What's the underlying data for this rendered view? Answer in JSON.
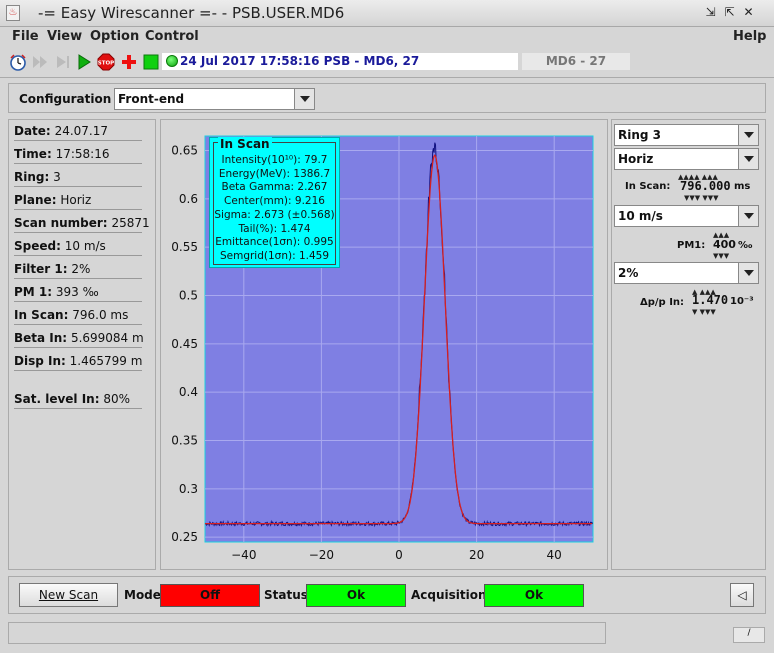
{
  "window": {
    "title": "-= Easy Wirescanner =- - PSB.USER.MD6"
  },
  "menubar": {
    "items": [
      "File",
      "View",
      "Option",
      "Control"
    ],
    "help": "Help"
  },
  "toolbar": {
    "info_text": "24 Jul 2017   17:58:16   PSB - MD6, 27",
    "md_field": "MD6  -  27",
    "icons": [
      "clock-icon",
      "step-forward-icon",
      "play-disabled-icon",
      "play-icon",
      "stop-icon",
      "red-cross-icon",
      "green-square-icon",
      "status-led-icon"
    ]
  },
  "configuration": {
    "label": "Configuration",
    "value": "Front-end"
  },
  "info": [
    {
      "label": "Date:",
      "value": "24.07.17"
    },
    {
      "label": "Time:",
      "value": "17:58:16"
    },
    {
      "label": "Ring:",
      "value": "3"
    },
    {
      "label": "Plane:",
      "value": "Horiz"
    },
    {
      "label": "Scan number:",
      "value": "25871"
    },
    {
      "label": "Speed:",
      "value": "10 m/s"
    },
    {
      "label": "Filter 1:",
      "value": "2%"
    },
    {
      "label": "PM 1:",
      "value": "393 ‰"
    },
    {
      "label": "In Scan:",
      "value": "796.0 ms"
    },
    {
      "label": "Beta In:",
      "value": "5.699084 m"
    },
    {
      "label": "Disp In:",
      "value": "1.465799 m"
    },
    {
      "label": "Sat. level In:",
      "value": "80%"
    }
  ],
  "right": {
    "ring": "Ring 3",
    "plane": "Horiz",
    "in_scan_label": "In Scan:",
    "in_scan_value": "796.000",
    "in_scan_unit": "ms",
    "speed": "10 m/s",
    "pm_label": "PM1:",
    "pm_value": "400",
    "pm_unit": "‰",
    "filter": "2%",
    "dpp_label": "Δp/p In:",
    "dpp_value": "1.470",
    "dpp_unit": "10⁻³"
  },
  "legend": {
    "title": "In Scan",
    "lines": [
      "Intensity(10¹⁰): 79.7",
      "Energy(MeV): 1386.7",
      "Beta Gamma: 2.267",
      "Center(mm): 9.216",
      "Sigma: 2.673 (±0.568)",
      "Tail(%): 1.474",
      "Emittance(1σn): 0.995",
      "Semgrid(1σn): 1.459"
    ]
  },
  "bottom": {
    "new_scan": "New Scan",
    "mode_label": "Mode",
    "mode_value": "Off",
    "status_label": "Status",
    "status_value": "Ok",
    "acq_label": "Acquisition",
    "acq_value": "Ok"
  },
  "colors": {
    "plot_bg": "#7f7fe3",
    "fit": "#d62020",
    "data": "#101080",
    "off": "#ff0000",
    "ok": "#00ff00",
    "legend_bg": "#00ffff"
  },
  "chart_data": {
    "type": "line",
    "xlim": [
      -50,
      50
    ],
    "ylim": [
      0.245,
      0.665
    ],
    "xticks": [
      -40,
      -20,
      0,
      20,
      40
    ],
    "yticks": [
      0.25,
      0.3,
      0.35,
      0.4,
      0.45,
      0.5,
      0.55,
      0.6,
      0.65
    ],
    "grid": true,
    "series": [
      {
        "role": "measured",
        "baseline": 0.264,
        "peak": 0.654,
        "center": 9.2,
        "sigma": 2.67
      },
      {
        "role": "fit",
        "baseline": 0.264,
        "peak": 0.645,
        "center": 9.216,
        "sigma": 2.673
      }
    ]
  }
}
